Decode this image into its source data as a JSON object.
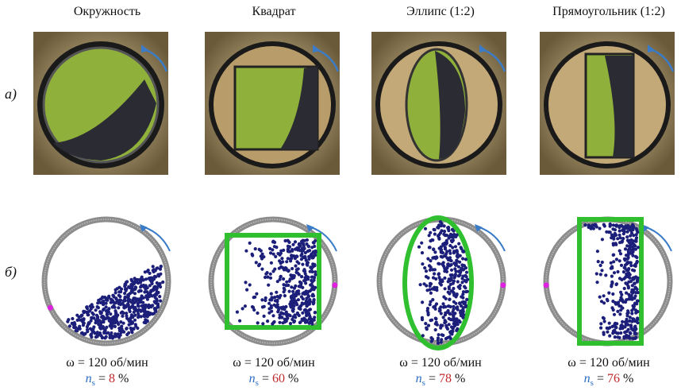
{
  "columns": [
    {
      "title": "Окружность",
      "omega": "ω = 120 об/мин",
      "ns_value": "8",
      "shape": "circle"
    },
    {
      "title": "Квадрат",
      "omega": "ω = 120 об/мин",
      "ns_value": "60",
      "shape": "square"
    },
    {
      "title": "Эллипс (1:2)",
      "omega": "ω = 120 об/мин",
      "ns_value": "78",
      "shape": "ellipse"
    },
    {
      "title": "Прямоугольник (1:2)",
      "omega": "ω = 120 об/мин",
      "ns_value": "76",
      "shape": "rectangle"
    }
  ],
  "row_labels": {
    "a": "а)",
    "b": "б)"
  },
  "ns_symbol": "n",
  "ns_subscript": "s",
  "ns_eq": " = ",
  "ns_unit": " %",
  "colors": {
    "drum_gray": "#8c8c8c",
    "container_green": "#2fbf2f",
    "particle_navy": "#1c1f7a",
    "arrow_blue": "#3a7cc8",
    "marker_magenta": "#e020e0",
    "photo_green": "#8fb03a"
  }
}
